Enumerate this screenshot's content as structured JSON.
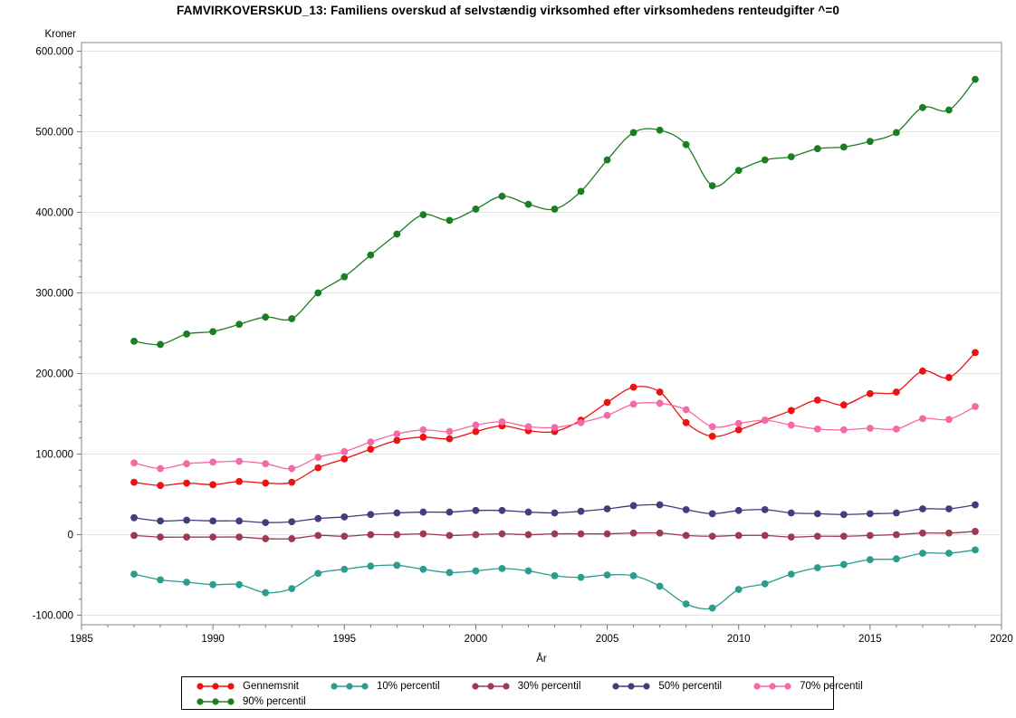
{
  "chart_data": {
    "type": "line",
    "title": "FAMVIRKOVERSKUD_13: Familiens overskud af selvstændig virksomhed efter virksomhedens renteudgifter ^=0",
    "xlabel": "År",
    "ylabel": "Kroner",
    "xlim": [
      1985,
      2020
    ],
    "ylim": [
      -100000,
      600000
    ],
    "grid": "horizontal",
    "legend_position": "bottom",
    "marker": "filled-circle",
    "x_ticks": [
      1985,
      1990,
      1995,
      2000,
      2005,
      2010,
      2015,
      2020
    ],
    "y_ticks": [
      {
        "value": 600000,
        "label": "600.000"
      },
      {
        "value": 500000,
        "label": "500.000"
      },
      {
        "value": 400000,
        "label": "400.000"
      },
      {
        "value": 300000,
        "label": "300.000"
      },
      {
        "value": 200000,
        "label": "200.000"
      },
      {
        "value": 100000,
        "label": "100.000"
      },
      {
        "value": 0,
        "label": "0"
      },
      {
        "value": -100000,
        "label": "-100.000"
      }
    ],
    "x": [
      1987,
      1988,
      1989,
      1990,
      1991,
      1992,
      1993,
      1994,
      1995,
      1996,
      1997,
      1998,
      1999,
      2000,
      2001,
      2002,
      2003,
      2004,
      2005,
      2006,
      2007,
      2008,
      2009,
      2010,
      2011,
      2012,
      2013,
      2014,
      2015,
      2016,
      2017,
      2018,
      2019
    ],
    "series": [
      {
        "name": "Gennemsnit",
        "color": "#ed1111",
        "values": [
          65000,
          61000,
          64000,
          62000,
          66000,
          64000,
          65000,
          83000,
          94000,
          106000,
          117000,
          121000,
          119000,
          128000,
          135000,
          129000,
          128000,
          142000,
          164000,
          183000,
          177000,
          139000,
          122000,
          130000,
          142000,
          154000,
          167000,
          161000,
          175000,
          177000,
          203000,
          195000,
          226000
        ]
      },
      {
        "name": "10% percentil",
        "color": "#2a9d8f",
        "values": [
          -49000,
          -56000,
          -59000,
          -62000,
          -62000,
          -72000,
          -67000,
          -48000,
          -43000,
          -39000,
          -38000,
          -43000,
          -47000,
          -45000,
          -42000,
          -45000,
          -51000,
          -53000,
          -50000,
          -51000,
          -64000,
          -86000,
          -91000,
          -68000,
          -61000,
          -49000,
          -41000,
          -37000,
          -31000,
          -30000,
          -23000,
          -23000,
          -19000
        ]
      },
      {
        "name": "30% percentil",
        "color": "#9e3a50",
        "values": [
          -1000,
          -3000,
          -3000,
          -3000,
          -3000,
          -5000,
          -5000,
          -1000,
          -2000,
          0,
          0,
          1000,
          -1000,
          0,
          1000,
          0,
          1000,
          1000,
          1000,
          2000,
          2000,
          -1000,
          -2000,
          -1000,
          -1000,
          -3000,
          -2000,
          -2000,
          -1000,
          0,
          2000,
          2000,
          4000
        ]
      },
      {
        "name": "50% percentil",
        "color": "#3f3f7d",
        "values": [
          21000,
          17000,
          18000,
          17000,
          17000,
          15000,
          16000,
          20000,
          22000,
          25000,
          27000,
          28000,
          28000,
          30000,
          30000,
          28000,
          27000,
          29000,
          32000,
          36000,
          37000,
          31000,
          26000,
          30000,
          31000,
          27000,
          26000,
          25000,
          26000,
          27000,
          32000,
          32000,
          37000
        ]
      },
      {
        "name": "70% percentil",
        "color": "#f668a8",
        "values": [
          89000,
          82000,
          88000,
          90000,
          91000,
          88000,
          82000,
          96000,
          103000,
          115000,
          125000,
          130000,
          128000,
          136000,
          140000,
          134000,
          133000,
          139000,
          148000,
          162000,
          163000,
          155000,
          134000,
          138000,
          142000,
          136000,
          131000,
          130000,
          132000,
          131000,
          144000,
          143000,
          159000
        ]
      },
      {
        "name": "90% percentil",
        "color": "#1b7e20",
        "values": [
          240000,
          236000,
          249000,
          252000,
          261000,
          270000,
          268000,
          300000,
          320000,
          347000,
          373000,
          397000,
          390000,
          404000,
          420000,
          410000,
          404000,
          426000,
          465000,
          499000,
          502000,
          484000,
          433000,
          452000,
          465000,
          469000,
          479000,
          481000,
          488000,
          499000,
          530000,
          527000,
          565000
        ]
      }
    ]
  },
  "legend": {
    "rows": [
      [
        "Gennemsnit",
        "10% percentil",
        "30% percentil",
        "50% percentil",
        "70% percentil"
      ],
      [
        "90% percentil"
      ]
    ]
  }
}
